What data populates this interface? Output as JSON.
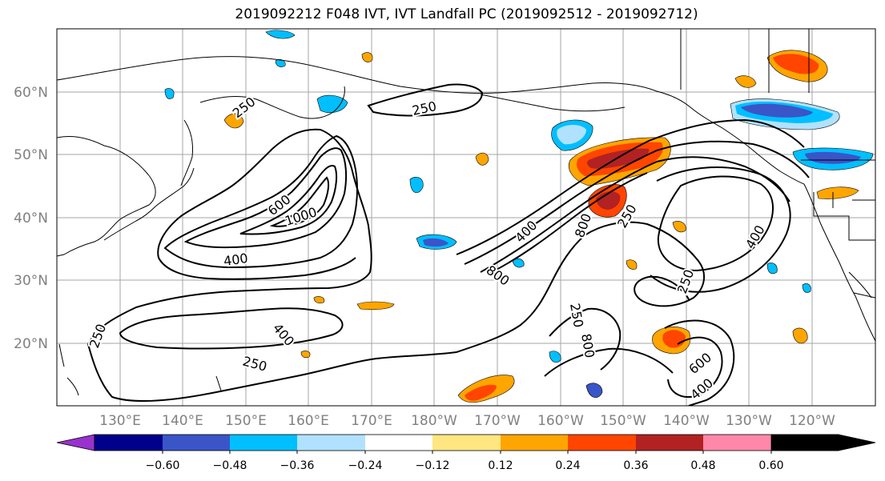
{
  "title": "2019092212 F048 IVT, IVT Landfall PC (2019092512 - 2019092712)",
  "lat_labels": [
    "60°N",
    "50°N",
    "40°N",
    "30°N",
    "20°N"
  ],
  "lon_labels": [
    "130°E",
    "140°E",
    "150°E",
    "160°E",
    "170°E",
    "180°W",
    "170°W",
    "160°W",
    "150°W",
    "140°W",
    "130°W",
    "120°W"
  ],
  "colorbar": {
    "tick_labels": [
      "−0.60",
      "−0.48",
      "−0.36",
      "−0.24",
      "−0.12",
      "0.12",
      "0.24",
      "0.36",
      "0.48",
      "0.60"
    ],
    "colors": [
      "#9932cc",
      "#00008b",
      "#3a55c8",
      "#00bfff",
      "#b0e2ff",
      "#ffffff",
      "#ffe680",
      "#ffa500",
      "#ff4500",
      "#b22222",
      "#ff88aa"
    ]
  },
  "contour_labels": [
    "250",
    "250",
    "600",
    "1000",
    "400",
    "800",
    "250",
    "400",
    "250",
    "400",
    "250",
    "400",
    "250",
    "800",
    "600",
    "400",
    "250",
    "800"
  ]
}
